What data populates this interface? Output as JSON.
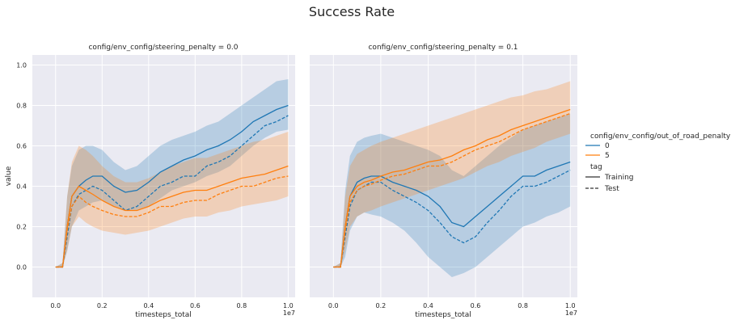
{
  "figure": {
    "title": "Success Rate"
  },
  "chart_data": [
    {
      "type": "line",
      "panel_title": "config/env_config/steering_penalty = 0.0",
      "xlabel": "timesteps_total",
      "ylabel": "value",
      "x_offset_label": "1e7",
      "xlim": [
        -0.1,
        1.03
      ],
      "ylim": [
        -0.15,
        1.05
      ],
      "x_unit": 10000000,
      "x_ticks": [
        0.0,
        0.2,
        0.4,
        0.6,
        0.8,
        1.0
      ],
      "y_ticks": [
        0.0,
        0.2,
        0.4,
        0.6,
        0.8,
        1.0
      ],
      "grid": true,
      "series": [
        {
          "name": "0",
          "style": "Training",
          "color": "#1f77b4",
          "x": [
            0.0,
            0.03,
            0.05,
            0.07,
            0.1,
            0.13,
            0.16,
            0.2,
            0.25,
            0.3,
            0.35,
            0.4,
            0.45,
            0.5,
            0.55,
            0.6,
            0.65,
            0.7,
            0.75,
            0.8,
            0.85,
            0.9,
            0.95,
            1.0
          ],
          "y": [
            0.0,
            0.0,
            0.2,
            0.35,
            0.4,
            0.43,
            0.45,
            0.45,
            0.4,
            0.37,
            0.38,
            0.42,
            0.47,
            0.5,
            0.53,
            0.55,
            0.58,
            0.6,
            0.63,
            0.67,
            0.72,
            0.75,
            0.78,
            0.8
          ],
          "lower": [
            0.0,
            0.0,
            0.08,
            0.2,
            0.28,
            0.3,
            0.32,
            0.33,
            0.3,
            0.28,
            0.28,
            0.3,
            0.34,
            0.38,
            0.4,
            0.42,
            0.45,
            0.47,
            0.5,
            0.55,
            0.6,
            0.64,
            0.67,
            0.68
          ],
          "upper": [
            0.0,
            0.02,
            0.35,
            0.5,
            0.58,
            0.6,
            0.6,
            0.58,
            0.52,
            0.48,
            0.5,
            0.55,
            0.6,
            0.63,
            0.65,
            0.67,
            0.7,
            0.72,
            0.76,
            0.8,
            0.84,
            0.88,
            0.92,
            0.93
          ]
        },
        {
          "name": "0",
          "style": "Test",
          "color": "#1f77b4",
          "x": [
            0.0,
            0.03,
            0.05,
            0.07,
            0.1,
            0.13,
            0.16,
            0.2,
            0.25,
            0.3,
            0.35,
            0.4,
            0.45,
            0.5,
            0.55,
            0.6,
            0.65,
            0.7,
            0.75,
            0.8,
            0.85,
            0.9,
            0.95,
            1.0
          ],
          "y": [
            0.0,
            0.0,
            0.15,
            0.3,
            0.36,
            0.38,
            0.4,
            0.38,
            0.33,
            0.28,
            0.3,
            0.35,
            0.4,
            0.42,
            0.45,
            0.45,
            0.5,
            0.52,
            0.55,
            0.6,
            0.65,
            0.7,
            0.72,
            0.75
          ]
        },
        {
          "name": "5",
          "style": "Training",
          "color": "#ff7f0e",
          "x": [
            0.0,
            0.03,
            0.05,
            0.07,
            0.1,
            0.13,
            0.16,
            0.2,
            0.25,
            0.3,
            0.35,
            0.4,
            0.45,
            0.5,
            0.55,
            0.6,
            0.65,
            0.7,
            0.75,
            0.8,
            0.85,
            0.9,
            0.95,
            1.0
          ],
          "y": [
            0.0,
            0.0,
            0.2,
            0.35,
            0.4,
            0.38,
            0.36,
            0.33,
            0.3,
            0.28,
            0.28,
            0.3,
            0.33,
            0.35,
            0.37,
            0.38,
            0.38,
            0.4,
            0.42,
            0.44,
            0.45,
            0.46,
            0.48,
            0.5
          ],
          "lower": [
            0.0,
            0.0,
            0.08,
            0.2,
            0.25,
            0.22,
            0.2,
            0.18,
            0.17,
            0.16,
            0.17,
            0.18,
            0.2,
            0.22,
            0.24,
            0.25,
            0.25,
            0.27,
            0.28,
            0.3,
            0.31,
            0.32,
            0.33,
            0.35
          ],
          "upper": [
            0.0,
            0.02,
            0.35,
            0.52,
            0.6,
            0.58,
            0.55,
            0.5,
            0.45,
            0.42,
            0.42,
            0.44,
            0.47,
            0.5,
            0.52,
            0.54,
            0.54,
            0.56,
            0.58,
            0.6,
            0.62,
            0.63,
            0.65,
            0.67
          ]
        },
        {
          "name": "5",
          "style": "Test",
          "color": "#ff7f0e",
          "x": [
            0.0,
            0.03,
            0.05,
            0.07,
            0.1,
            0.13,
            0.16,
            0.2,
            0.25,
            0.3,
            0.35,
            0.4,
            0.45,
            0.5,
            0.55,
            0.6,
            0.65,
            0.7,
            0.75,
            0.8,
            0.85,
            0.9,
            0.95,
            1.0
          ],
          "y": [
            0.0,
            0.0,
            0.18,
            0.3,
            0.35,
            0.32,
            0.3,
            0.28,
            0.26,
            0.25,
            0.25,
            0.27,
            0.3,
            0.3,
            0.32,
            0.33,
            0.33,
            0.36,
            0.38,
            0.4,
            0.4,
            0.42,
            0.44,
            0.45
          ]
        }
      ]
    },
    {
      "type": "line",
      "panel_title": "config/env_config/steering_penalty = 0.1",
      "xlabel": "timesteps_total",
      "ylabel": "",
      "x_offset_label": "1e7",
      "xlim": [
        -0.1,
        1.03
      ],
      "ylim": [
        -0.15,
        1.05
      ],
      "x_unit": 10000000,
      "x_ticks": [
        0.0,
        0.2,
        0.4,
        0.6,
        0.8,
        1.0
      ],
      "y_ticks": [
        0.0,
        0.2,
        0.4,
        0.6,
        0.8,
        1.0
      ],
      "grid": true,
      "series": [
        {
          "name": "0",
          "style": "Training",
          "color": "#1f77b4",
          "x": [
            0.0,
            0.03,
            0.05,
            0.07,
            0.1,
            0.13,
            0.16,
            0.2,
            0.25,
            0.3,
            0.35,
            0.4,
            0.45,
            0.5,
            0.55,
            0.6,
            0.65,
            0.7,
            0.75,
            0.8,
            0.85,
            0.9,
            0.95,
            1.0
          ],
          "y": [
            0.0,
            0.0,
            0.2,
            0.35,
            0.42,
            0.44,
            0.45,
            0.45,
            0.42,
            0.4,
            0.38,
            0.35,
            0.3,
            0.22,
            0.2,
            0.25,
            0.3,
            0.35,
            0.4,
            0.45,
            0.45,
            0.48,
            0.5,
            0.52
          ],
          "lower": [
            0.0,
            0.0,
            0.05,
            0.18,
            0.25,
            0.27,
            0.26,
            0.25,
            0.22,
            0.18,
            0.12,
            0.05,
            0.0,
            -0.05,
            -0.03,
            0.0,
            0.05,
            0.1,
            0.15,
            0.2,
            0.22,
            0.25,
            0.27,
            0.3
          ],
          "upper": [
            0.0,
            0.02,
            0.38,
            0.55,
            0.62,
            0.64,
            0.65,
            0.66,
            0.64,
            0.62,
            0.6,
            0.58,
            0.55,
            0.48,
            0.45,
            0.5,
            0.55,
            0.6,
            0.64,
            0.68,
            0.7,
            0.72,
            0.74,
            0.76
          ]
        },
        {
          "name": "0",
          "style": "Test",
          "color": "#1f77b4",
          "x": [
            0.0,
            0.03,
            0.05,
            0.07,
            0.1,
            0.13,
            0.16,
            0.2,
            0.25,
            0.3,
            0.35,
            0.4,
            0.45,
            0.5,
            0.55,
            0.6,
            0.65,
            0.7,
            0.75,
            0.8,
            0.85,
            0.9,
            0.95,
            1.0
          ],
          "y": [
            0.0,
            0.0,
            0.15,
            0.3,
            0.38,
            0.4,
            0.42,
            0.42,
            0.38,
            0.35,
            0.32,
            0.28,
            0.22,
            0.15,
            0.12,
            0.15,
            0.22,
            0.28,
            0.35,
            0.4,
            0.4,
            0.42,
            0.45,
            0.48
          ]
        },
        {
          "name": "5",
          "style": "Training",
          "color": "#ff7f0e",
          "x": [
            0.0,
            0.03,
            0.05,
            0.07,
            0.1,
            0.13,
            0.16,
            0.2,
            0.25,
            0.3,
            0.35,
            0.4,
            0.45,
            0.5,
            0.55,
            0.6,
            0.65,
            0.7,
            0.75,
            0.8,
            0.85,
            0.9,
            0.95,
            1.0
          ],
          "y": [
            0.0,
            0.0,
            0.2,
            0.35,
            0.4,
            0.42,
            0.43,
            0.45,
            0.47,
            0.48,
            0.5,
            0.52,
            0.53,
            0.55,
            0.58,
            0.6,
            0.63,
            0.65,
            0.68,
            0.7,
            0.72,
            0.74,
            0.76,
            0.78
          ],
          "lower": [
            0.0,
            0.0,
            0.08,
            0.2,
            0.25,
            0.27,
            0.28,
            0.3,
            0.32,
            0.34,
            0.36,
            0.38,
            0.4,
            0.42,
            0.44,
            0.47,
            0.5,
            0.52,
            0.55,
            0.57,
            0.59,
            0.62,
            0.64,
            0.66
          ],
          "upper": [
            0.0,
            0.02,
            0.35,
            0.5,
            0.56,
            0.58,
            0.6,
            0.62,
            0.64,
            0.66,
            0.68,
            0.7,
            0.72,
            0.74,
            0.76,
            0.78,
            0.8,
            0.82,
            0.84,
            0.85,
            0.87,
            0.88,
            0.9,
            0.92
          ]
        },
        {
          "name": "5",
          "style": "Test",
          "color": "#ff7f0e",
          "x": [
            0.0,
            0.03,
            0.05,
            0.07,
            0.1,
            0.13,
            0.16,
            0.2,
            0.25,
            0.3,
            0.35,
            0.4,
            0.45,
            0.5,
            0.55,
            0.6,
            0.65,
            0.7,
            0.75,
            0.8,
            0.85,
            0.9,
            0.95,
            1.0
          ],
          "y": [
            0.0,
            0.0,
            0.18,
            0.32,
            0.38,
            0.4,
            0.41,
            0.43,
            0.45,
            0.46,
            0.48,
            0.5,
            0.5,
            0.52,
            0.55,
            0.58,
            0.6,
            0.62,
            0.65,
            0.68,
            0.7,
            0.72,
            0.74,
            0.76
          ]
        }
      ]
    }
  ],
  "legend": {
    "hue_title": "config/env_config/out_of_road_penalty",
    "hue_items": [
      {
        "label": "0",
        "color": "#1f77b4"
      },
      {
        "label": "5",
        "color": "#ff7f0e"
      }
    ],
    "style_title": "tag",
    "style_items": [
      {
        "label": "Training",
        "dash": "solid"
      },
      {
        "label": "Test",
        "dash": "dashed"
      }
    ],
    "placement": "right"
  },
  "colors": {
    "axes_background": "#eaeaf2",
    "grid": "#ffffff"
  }
}
